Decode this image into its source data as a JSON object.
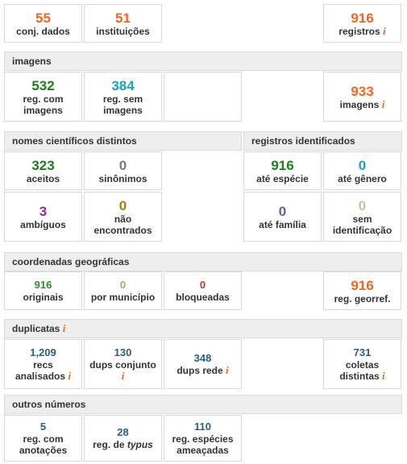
{
  "colors": {
    "orange": "#f26522",
    "green": "#1b7f1b",
    "teal": "#17a2b8",
    "gray": "#7a7a7a",
    "purple": "#8e2a9a",
    "olive": "#a07d16",
    "slate": "#5a6a8a",
    "beige": "#c9c2a0",
    "blue": "#2a5d8a",
    "red": "#c9302c"
  },
  "info_glyph": "i",
  "top": {
    "datasets": {
      "value": "55",
      "label": "conj. dados"
    },
    "institutions": {
      "value": "51",
      "label": "instituições"
    },
    "records": {
      "value": "916",
      "label": "registros"
    }
  },
  "images": {
    "title": "imagens",
    "with": {
      "value": "532",
      "label1": "reg. com",
      "label2": "imagens"
    },
    "without": {
      "value": "384",
      "label1": "reg. sem",
      "label2": "imagens"
    },
    "total": {
      "value": "933",
      "label": "imagens"
    }
  },
  "names": {
    "title": "nomes científicos distintos",
    "accepted": {
      "value": "323",
      "label": "aceitos"
    },
    "synonyms": {
      "value": "0",
      "label": "sinônimos"
    },
    "ambiguous": {
      "value": "3",
      "label": "ambíguos"
    },
    "not_found": {
      "value": "0",
      "label1": "não",
      "label2": "encontrados"
    }
  },
  "identified": {
    "title": "registros identificados",
    "species": {
      "value": "916",
      "label": "até espécie"
    },
    "genus": {
      "value": "0",
      "label": "até gênero"
    },
    "family": {
      "value": "0",
      "label": "até família"
    },
    "none": {
      "value": "0",
      "label1": "sem",
      "label2": "identificação"
    }
  },
  "coords": {
    "title": "coordenadas geográficas",
    "original": {
      "value": "916",
      "label": "originais"
    },
    "municipality": {
      "value": "0",
      "label": "por município"
    },
    "blocked": {
      "value": "0",
      "label": "bloqueadas"
    },
    "georef": {
      "value": "916",
      "label": "reg. georref."
    }
  },
  "duplicates": {
    "title": "duplicatas",
    "analyzed": {
      "value": "1,209",
      "label1": "recs",
      "label2": "analisados"
    },
    "set": {
      "value": "130",
      "label1": "dups conjunto"
    },
    "network": {
      "value": "348",
      "label": "dups rede"
    },
    "collections": {
      "value": "731",
      "label1": "coletas",
      "label2": "distintas"
    }
  },
  "other": {
    "title": "outros números",
    "annotations": {
      "value": "5",
      "label1": "reg. com",
      "label2": "anotações"
    },
    "typus": {
      "value": "28",
      "label_prefix": "reg. de",
      "label_em": "typus"
    },
    "threatened": {
      "value": "110",
      "label1": "reg. espécies",
      "label2": "ameaçadas"
    }
  }
}
